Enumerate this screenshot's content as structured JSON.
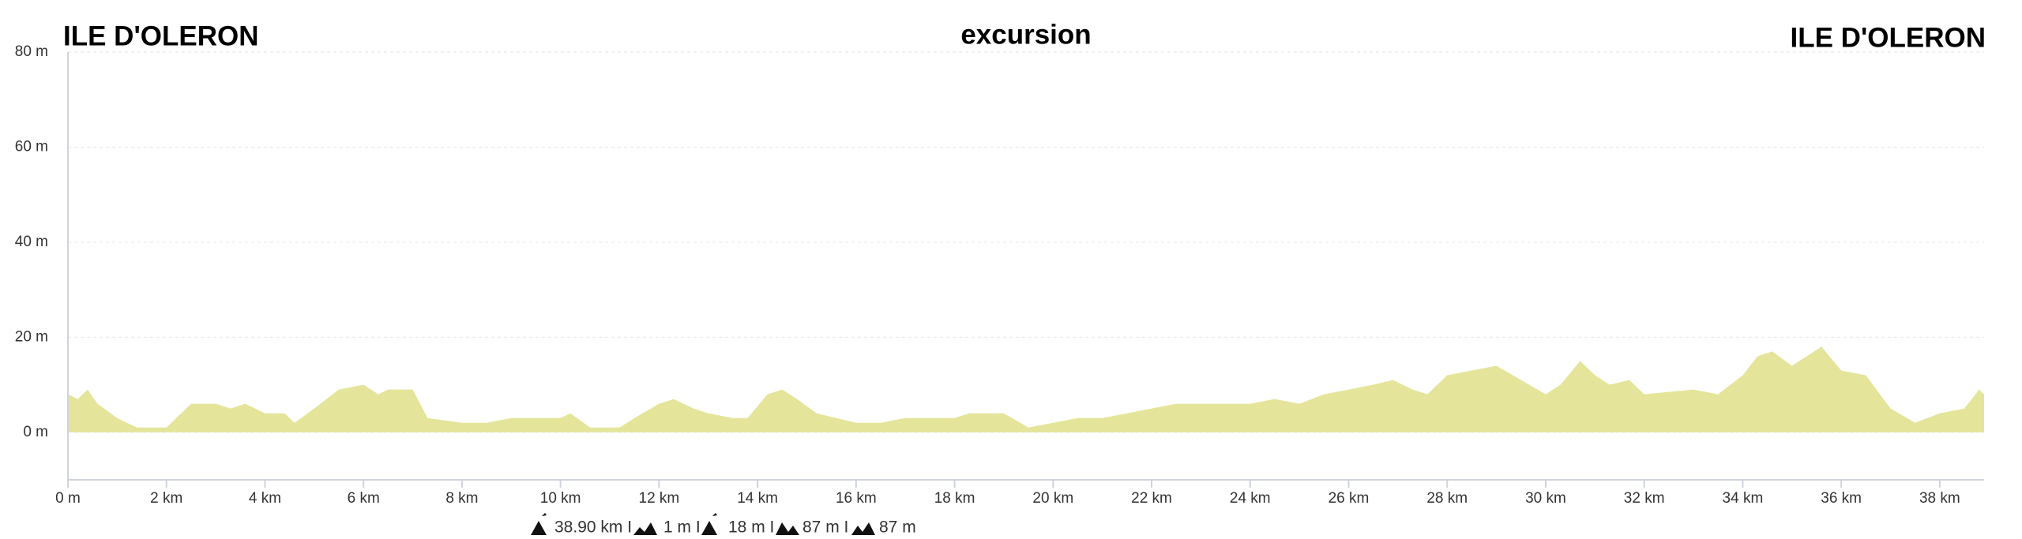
{
  "chart_data": {
    "type": "area",
    "title": "excursion",
    "start_label": "ILE D'OLERON",
    "end_label": "ILE D'OLERON",
    "color": "#e4e59a",
    "grid": true,
    "x": [
      0,
      0.2,
      0.4,
      0.6,
      1.0,
      1.4,
      2.0,
      2.5,
      3.0,
      3.3,
      3.6,
      4.0,
      4.4,
      4.6,
      5.0,
      5.5,
      6.0,
      6.3,
      6.5,
      7.0,
      7.3,
      8.0,
      8.5,
      9.0,
      10.0,
      10.2,
      10.6,
      11.2,
      11.5,
      12.0,
      12.3,
      12.7,
      13.0,
      13.5,
      13.8,
      14.2,
      14.5,
      14.8,
      15.2,
      15.6,
      16.0,
      16.5,
      17.0,
      18.0,
      18.3,
      19.0,
      19.5,
      20.0,
      20.5,
      21.0,
      21.5,
      22.0,
      22.5,
      23.5,
      24.0,
      24.5,
      25.0,
      25.5,
      26.0,
      26.5,
      26.9,
      27.3,
      27.6,
      28.0,
      28.5,
      29.0,
      29.5,
      30.0,
      30.3,
      30.7,
      31.0,
      31.3,
      31.7,
      32.0,
      33.0,
      33.5,
      34.0,
      34.3,
      34.6,
      35.0,
      35.3,
      35.6,
      36.0,
      36.5,
      37.0,
      37.5,
      38.0,
      38.5,
      38.8,
      38.9
    ],
    "values": [
      8,
      7,
      9,
      6,
      3,
      1,
      1,
      6,
      6,
      5,
      6,
      4,
      4,
      2,
      5,
      9,
      10,
      8,
      9,
      9,
      3,
      2,
      2,
      3,
      3,
      4,
      1,
      1,
      3,
      6,
      7,
      5,
      4,
      3,
      3,
      8,
      9,
      7,
      4,
      3,
      2,
      2,
      3,
      3,
      4,
      4,
      1,
      2,
      3,
      3,
      4,
      5,
      6,
      6,
      6,
      7,
      6,
      8,
      9,
      10,
      11,
      9,
      8,
      12,
      13,
      14,
      11,
      8,
      10,
      15,
      12,
      10,
      11,
      8,
      9,
      8,
      12,
      16,
      17,
      14,
      16,
      18,
      13,
      12,
      5,
      2,
      4,
      5,
      9,
      8
    ],
    "xlim": [
      0,
      38.9
    ],
    "ylim": [
      -10,
      80
    ],
    "xticks": [
      {
        "value": 0,
        "label": "0 m"
      },
      {
        "value": 2,
        "label": "2 km"
      },
      {
        "value": 4,
        "label": "4 km"
      },
      {
        "value": 6,
        "label": "6 km"
      },
      {
        "value": 8,
        "label": "8 km"
      },
      {
        "value": 10,
        "label": "10 km"
      },
      {
        "value": 12,
        "label": "12 km"
      },
      {
        "value": 14,
        "label": "14 km"
      },
      {
        "value": 16,
        "label": "16 km"
      },
      {
        "value": 18,
        "label": "18 km"
      },
      {
        "value": 20,
        "label": "20 km"
      },
      {
        "value": 22,
        "label": "22 km"
      },
      {
        "value": 24,
        "label": "24 km"
      },
      {
        "value": 26,
        "label": "26 km"
      },
      {
        "value": 28,
        "label": "28 km"
      },
      {
        "value": 30,
        "label": "30 km"
      },
      {
        "value": 32,
        "label": "32 km"
      },
      {
        "value": 34,
        "label": "34 km"
      },
      {
        "value": 36,
        "label": "36 km"
      },
      {
        "value": 38,
        "label": "38 km"
      }
    ],
    "yticks": [
      {
        "value": 0,
        "label": "0 m"
      },
      {
        "value": 20,
        "label": "20 m"
      },
      {
        "value": 40,
        "label": "40 m"
      },
      {
        "value": 60,
        "label": "60 m"
      },
      {
        "value": 80,
        "label": "80 m"
      }
    ],
    "stats": [
      "38.90 km I",
      "1 m I",
      "18 m I",
      "87 m I",
      "87 m"
    ]
  }
}
